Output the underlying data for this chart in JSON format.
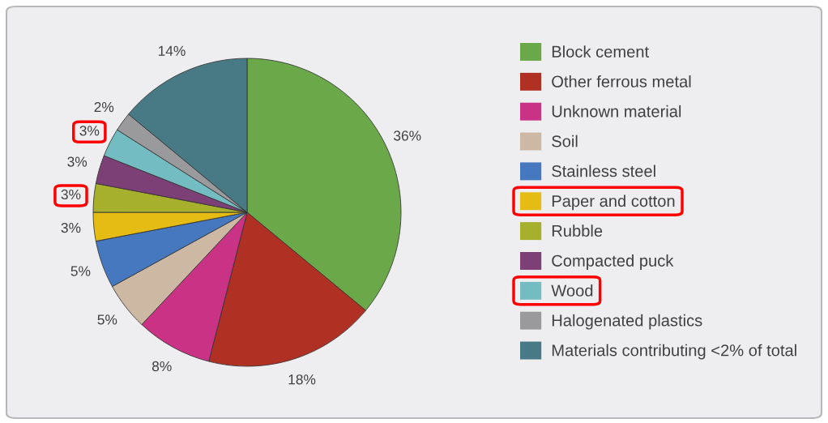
{
  "chart_data": {
    "type": "pie",
    "categories": [
      "Block cement",
      "Other ferrous metal",
      "Unknown material",
      "Soil",
      "Stainless steel",
      "Paper and cotton",
      "Rubble",
      "Compacted puck",
      "Wood",
      "Halogenated plastics",
      "Materials contributing <2% of total"
    ],
    "values": [
      36,
      18,
      8,
      5,
      5,
      3,
      3,
      3,
      3,
      2,
      14
    ],
    "colors": [
      "#6aa84a",
      "#b03024",
      "#c93285",
      "#cdb9a3",
      "#4678bf",
      "#e4bc14",
      "#a6b02c",
      "#7c3f76",
      "#72bcc2",
      "#9a9a9c",
      "#477a84"
    ],
    "value_labels": [
      "36%",
      "18%",
      "8%",
      "5%",
      "5%",
      "3%",
      "3%",
      "3%",
      "3%",
      "2%",
      "14%"
    ],
    "legend": "right"
  }
}
